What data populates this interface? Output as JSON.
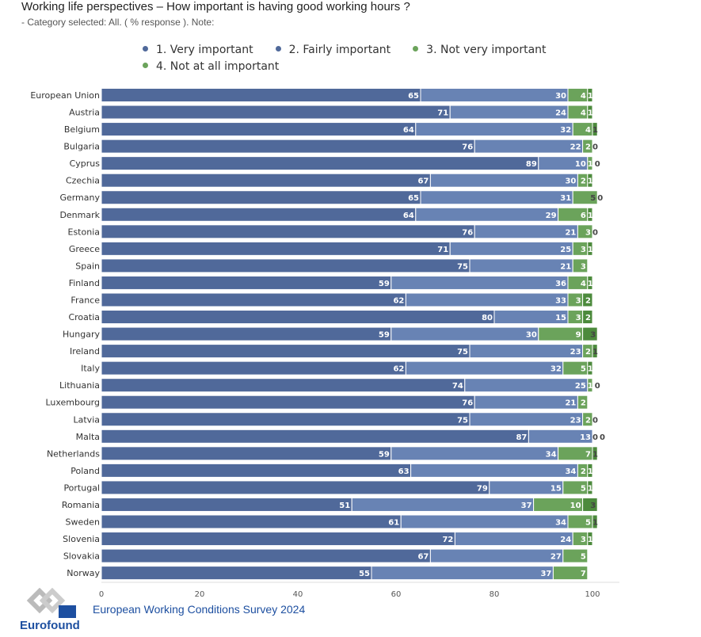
{
  "chart_data": {
    "type": "bar",
    "orientation": "horizontal",
    "stacked": true,
    "title": "Working life perspectives – How important is having good working hours ?",
    "subtitle": "- Category selected: All. ( % response ). Note:",
    "legend_position": "top",
    "xlim": [
      0,
      100
    ],
    "xticks": [
      0,
      20,
      40,
      60,
      80,
      100
    ],
    "categories": [
      "European Union",
      "Austria",
      "Belgium",
      "Bulgaria",
      "Cyprus",
      "Czechia",
      "Germany",
      "Denmark",
      "Estonia",
      "Greece",
      "Spain",
      "Finland",
      "France",
      "Croatia",
      "Hungary",
      "Ireland",
      "Italy",
      "Lithuania",
      "Luxembourg",
      "Latvia",
      "Malta",
      "Netherlands",
      "Poland",
      "Portugal",
      "Romania",
      "Sweden",
      "Slovenia",
      "Slovakia",
      "Norway"
    ],
    "series": [
      {
        "name": "1. Very important",
        "color": "#50699a",
        "values": [
          65,
          71,
          64,
          76,
          89,
          67,
          65,
          64,
          76,
          71,
          75,
          59,
          62,
          80,
          59,
          75,
          62,
          74,
          76,
          75,
          87,
          59,
          63,
          79,
          51,
          61,
          72,
          67,
          55
        ]
      },
      {
        "name": "2. Fairly important",
        "color": "#6883b4",
        "values": [
          30,
          24,
          32,
          22,
          10,
          30,
          31,
          29,
          21,
          25,
          21,
          36,
          33,
          15,
          30,
          23,
          32,
          25,
          21,
          23,
          13,
          34,
          34,
          15,
          37,
          34,
          24,
          27,
          37
        ]
      },
      {
        "name": "3. Not very important",
        "color": "#6ba35b",
        "values": [
          4,
          4,
          4,
          2,
          1,
          2,
          5,
          6,
          3,
          3,
          3,
          4,
          3,
          3,
          9,
          2,
          5,
          1,
          2,
          2,
          0,
          7,
          2,
          5,
          10,
          5,
          3,
          5,
          7
        ]
      },
      {
        "name": "4. Not at all important",
        "color": "#4c8a3c",
        "values": [
          1,
          1,
          1,
          0,
          0,
          1,
          0,
          1,
          0,
          1,
          0,
          1,
          2,
          2,
          3,
          1,
          1,
          0,
          0,
          0,
          0,
          1,
          1,
          1,
          3,
          1,
          1,
          0,
          0
        ]
      }
    ]
  },
  "footer": {
    "source": "European Working Conditions Survey 2024",
    "logo_text": "Eurofound"
  }
}
